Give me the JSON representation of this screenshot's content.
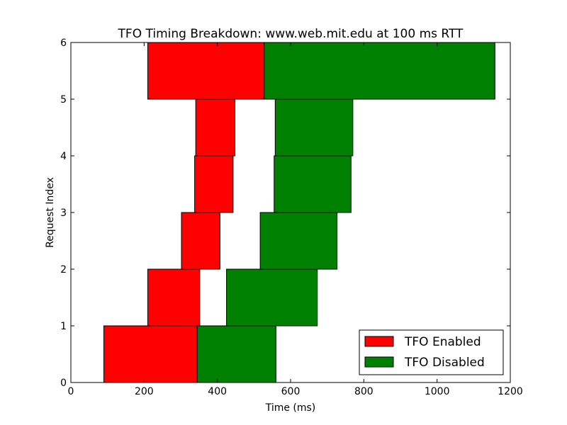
{
  "chart_data": {
    "type": "bar",
    "orientation": "horizontal",
    "title": "TFO Timing Breakdown: www.web.mit.edu at 100 ms RTT",
    "xlabel": "Time (ms)",
    "ylabel": "Request Index",
    "xlim": [
      0,
      1200
    ],
    "ylim": [
      0,
      6
    ],
    "xticks": [
      0,
      200,
      400,
      600,
      800,
      1000,
      1200
    ],
    "yticks": [
      0,
      1,
      2,
      3,
      4,
      5,
      6
    ],
    "grid": false,
    "legend_position": "bottom-right",
    "series": [
      {
        "name": "TFO Enabled",
        "color": "#ff0000",
        "bars": [
          {
            "index": 0,
            "start": 90,
            "end": 345
          },
          {
            "index": 1,
            "start": 210,
            "end": 352
          },
          {
            "index": 2,
            "start": 302,
            "end": 407
          },
          {
            "index": 3,
            "start": 338,
            "end": 443
          },
          {
            "index": 4,
            "start": 341,
            "end": 448
          },
          {
            "index": 5,
            "start": 210,
            "end": 528
          }
        ]
      },
      {
        "name": "TFO Disabled",
        "color": "#008000",
        "bars": [
          {
            "index": 0,
            "start": 345,
            "end": 560
          },
          {
            "index": 1,
            "start": 425,
            "end": 673
          },
          {
            "index": 2,
            "start": 517,
            "end": 727
          },
          {
            "index": 3,
            "start": 555,
            "end": 765
          },
          {
            "index": 4,
            "start": 558,
            "end": 770
          },
          {
            "index": 5,
            "start": 528,
            "end": 1158
          }
        ]
      }
    ]
  }
}
